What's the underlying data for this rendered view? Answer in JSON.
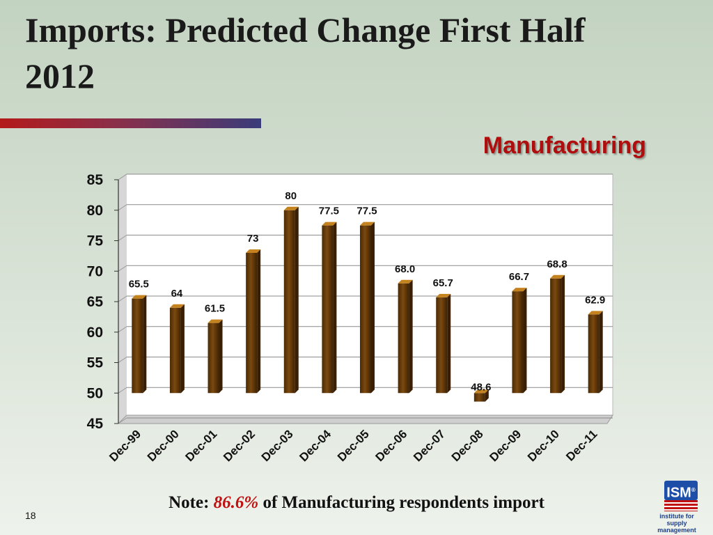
{
  "slide": {
    "title": "Imports: Predicted Change First Half 2012",
    "page_number": "18",
    "note": {
      "prefix": "Note:",
      "percent": "86.6%",
      "suffix": "of Manufacturing respondents import"
    },
    "logo": {
      "brand": "ISM",
      "mark": "®",
      "tagline_line1": "institute for",
      "tagline_line2": "supply management"
    },
    "colors": {
      "bar": "#6b3e0a",
      "bar_highlight": "#c4831f",
      "heading": "#b00e0e",
      "note_highlight": "#c01010"
    }
  },
  "chart_data": {
    "type": "bar",
    "title": "Manufacturing",
    "xlabel": "",
    "ylabel": "",
    "ylim": [
      45,
      85
    ],
    "yticks": [
      45,
      50,
      55,
      60,
      65,
      70,
      75,
      80,
      85
    ],
    "grid": true,
    "categories": [
      "Dec-99",
      "Dec-00",
      "Dec-01",
      "Dec-02",
      "Dec-03",
      "Dec-04",
      "Dec-05",
      "Dec-06",
      "Dec-07",
      "Dec-08",
      "Dec-09",
      "Dec-10",
      "Dec-11"
    ],
    "values": [
      65.5,
      64,
      61.5,
      73,
      80,
      77.5,
      77.5,
      68.0,
      65.7,
      48.6,
      66.7,
      68.8,
      62.9
    ],
    "labels": [
      "65.5",
      "64",
      "61.5",
      "73",
      "80",
      "77.5",
      "77.5",
      "68.0",
      "65.7",
      "48.6",
      "66.7",
      "68.8",
      "62.9"
    ],
    "baseline": 50
  }
}
